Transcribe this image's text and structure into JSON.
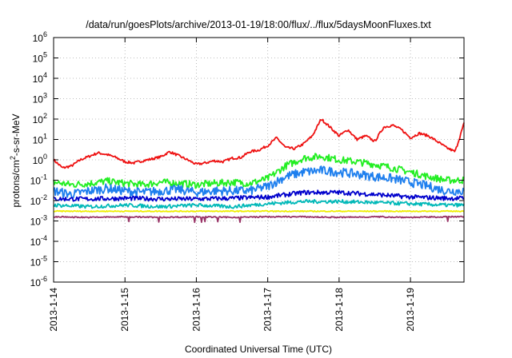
{
  "chart_data": {
    "type": "line",
    "title": "/data/run/goesPlots/archive/2013-01-19/18:00/flux/../flux/5daysMoonFluxes.txt",
    "xlabel": "Coordinated Universal Time (UTC)",
    "ylabel": "protons/cm²-s-sr-MeV",
    "ylabel_parts": {
      "pre": "protons/cm",
      "sup": "2",
      "post": "-s-sr-MeV"
    },
    "y_scale": "log",
    "ylim": [
      1e-06,
      1000000.0
    ],
    "y_ticks": [
      {
        "base": "10",
        "exp": "-6",
        "value": 1e-06
      },
      {
        "base": "10",
        "exp": "-5",
        "value": 1e-05
      },
      {
        "base": "10",
        "exp": "-4",
        "value": 0.0001
      },
      {
        "base": "10",
        "exp": "-3",
        "value": 0.001
      },
      {
        "base": "10",
        "exp": "-2",
        "value": 0.01
      },
      {
        "base": "10",
        "exp": "-1",
        "value": 0.1
      },
      {
        "base": "10",
        "exp": "0",
        "value": 1
      },
      {
        "base": "10",
        "exp": "1",
        "value": 10
      },
      {
        "base": "10",
        "exp": "2",
        "value": 100
      },
      {
        "base": "10",
        "exp": "3",
        "value": 1000
      },
      {
        "base": "10",
        "exp": "4",
        "value": 10000
      },
      {
        "base": "10",
        "exp": "5",
        "value": 100000
      },
      {
        "base": "10",
        "exp": "6",
        "value": 1000000
      }
    ],
    "xlim": [
      "2013-01-14T00:00",
      "2013-01-19T18:00"
    ],
    "x_ticks": [
      "2013-1-14",
      "2013-1-15",
      "2013-1-16",
      "2013-1-17",
      "2013-1-18",
      "2013-1-19"
    ],
    "grid": true,
    "legend": "none",
    "series": [
      {
        "color": "#ee1111",
        "x": [
          "2013-01-14T00:00",
          "2013-01-14T03:00",
          "2013-01-14T06:00",
          "2013-01-14T09:00",
          "2013-01-14T12:00",
          "2013-01-14T15:00",
          "2013-01-14T18:00",
          "2013-01-14T21:00",
          "2013-01-15T00:00",
          "2013-01-15T03:00",
          "2013-01-15T06:00",
          "2013-01-15T09:00",
          "2013-01-15T12:00",
          "2013-01-15T15:00",
          "2013-01-15T18:00",
          "2013-01-15T21:00",
          "2013-01-16T00:00",
          "2013-01-16T03:00",
          "2013-01-16T06:00",
          "2013-01-16T09:00",
          "2013-01-16T12:00",
          "2013-01-16T15:00",
          "2013-01-16T18:00",
          "2013-01-16T21:00",
          "2013-01-17T00:00",
          "2013-01-17T03:00",
          "2013-01-17T06:00",
          "2013-01-17T09:00",
          "2013-01-17T12:00",
          "2013-01-17T15:00",
          "2013-01-17T18:00",
          "2013-01-17T21:00",
          "2013-01-18T00:00",
          "2013-01-18T03:00",
          "2013-01-18T06:00",
          "2013-01-18T09:00",
          "2013-01-18T12:00",
          "2013-01-18T15:00",
          "2013-01-18T18:00",
          "2013-01-18T21:00",
          "2013-01-19T00:00",
          "2013-01-19T03:00",
          "2013-01-19T06:00",
          "2013-01-19T09:00",
          "2013-01-19T12:00",
          "2013-01-19T15:00",
          "2013-01-19T18:00"
        ],
        "values": [
          1.0,
          0.4,
          0.5,
          1.0,
          1.5,
          2.2,
          1.8,
          1.3,
          0.8,
          0.7,
          0.9,
          1.1,
          1.4,
          2.5,
          1.6,
          1.0,
          0.6,
          0.7,
          0.9,
          0.8,
          1.2,
          1.3,
          2.5,
          3.0,
          5.0,
          12,
          4.0,
          3.5,
          6.0,
          15,
          100,
          40,
          15,
          30,
          10,
          15,
          8.0,
          40,
          50,
          30,
          12,
          20,
          15,
          8.0,
          4.0,
          2.5,
          60
        ]
      },
      {
        "color": "#22ee22",
        "x": [
          "2013-01-14T00:00",
          "2013-01-14T06:00",
          "2013-01-14T12:00",
          "2013-01-14T18:00",
          "2013-01-15T00:00",
          "2013-01-15T06:00",
          "2013-01-15T12:00",
          "2013-01-15T18:00",
          "2013-01-16T00:00",
          "2013-01-16T06:00",
          "2013-01-16T12:00",
          "2013-01-16T18:00",
          "2013-01-17T00:00",
          "2013-01-17T06:00",
          "2013-01-17T12:00",
          "2013-01-17T18:00",
          "2013-01-18T00:00",
          "2013-01-18T06:00",
          "2013-01-18T12:00",
          "2013-01-18T18:00",
          "2013-01-19T00:00",
          "2013-01-19T06:00",
          "2013-01-19T12:00",
          "2013-01-19T18:00"
        ],
        "values": [
          0.08,
          0.06,
          0.07,
          0.09,
          0.07,
          0.06,
          0.08,
          0.07,
          0.06,
          0.07,
          0.08,
          0.07,
          0.12,
          0.5,
          1.2,
          1.5,
          1.0,
          0.8,
          0.6,
          0.4,
          0.25,
          0.15,
          0.1,
          0.1
        ]
      },
      {
        "color": "#1e7fee",
        "x": [
          "2013-01-14T00:00",
          "2013-01-14T06:00",
          "2013-01-14T12:00",
          "2013-01-14T18:00",
          "2013-01-15T00:00",
          "2013-01-15T06:00",
          "2013-01-15T12:00",
          "2013-01-15T18:00",
          "2013-01-16T00:00",
          "2013-01-16T06:00",
          "2013-01-16T12:00",
          "2013-01-16T18:00",
          "2013-01-17T00:00",
          "2013-01-17T06:00",
          "2013-01-17T12:00",
          "2013-01-17T18:00",
          "2013-01-18T00:00",
          "2013-01-18T06:00",
          "2013-01-18T12:00",
          "2013-01-18T18:00",
          "2013-01-19T00:00",
          "2013-01-19T06:00",
          "2013-01-19T12:00",
          "2013-01-19T18:00"
        ],
        "values": [
          0.03,
          0.02,
          0.03,
          0.04,
          0.03,
          0.025,
          0.03,
          0.035,
          0.025,
          0.03,
          0.03,
          0.03,
          0.05,
          0.15,
          0.25,
          0.3,
          0.25,
          0.2,
          0.15,
          0.12,
          0.08,
          0.05,
          0.03,
          0.03
        ]
      },
      {
        "color": "#0000cc",
        "x": [
          "2013-01-14T00:00",
          "2013-01-14T12:00",
          "2013-01-15T00:00",
          "2013-01-15T12:00",
          "2013-01-16T00:00",
          "2013-01-16T12:00",
          "2013-01-17T00:00",
          "2013-01-17T12:00",
          "2013-01-18T00:00",
          "2013-01-18T12:00",
          "2013-01-19T00:00",
          "2013-01-19T12:00",
          "2013-01-19T18:00"
        ],
        "values": [
          0.012,
          0.012,
          0.013,
          0.012,
          0.012,
          0.013,
          0.015,
          0.025,
          0.025,
          0.02,
          0.015,
          0.013,
          0.013
        ]
      },
      {
        "color": "#00b8b8",
        "x": [
          "2013-01-14T00:00",
          "2013-01-14T12:00",
          "2013-01-15T00:00",
          "2013-01-15T12:00",
          "2013-01-16T00:00",
          "2013-01-16T12:00",
          "2013-01-17T00:00",
          "2013-01-17T12:00",
          "2013-01-18T00:00",
          "2013-01-18T12:00",
          "2013-01-19T00:00",
          "2013-01-19T12:00",
          "2013-01-19T18:00"
        ],
        "values": [
          0.006,
          0.005,
          0.006,
          0.005,
          0.006,
          0.005,
          0.007,
          0.009,
          0.009,
          0.008,
          0.007,
          0.006,
          0.006
        ]
      },
      {
        "color": "#eeee00",
        "x": [
          "2013-01-14T00:00",
          "2013-01-19T18:00"
        ],
        "values": [
          0.003,
          0.003
        ]
      },
      {
        "color": "#993366",
        "x": [
          "2013-01-14T00:00",
          "2013-01-14T12:00",
          "2013-01-15T00:00",
          "2013-01-15T12:00",
          "2013-01-16T00:00",
          "2013-01-16T12:00",
          "2013-01-17T00:00",
          "2013-01-17T12:00",
          "2013-01-18T00:00",
          "2013-01-18T12:00",
          "2013-01-19T00:00",
          "2013-01-19T12:00",
          "2013-01-19T18:00"
        ],
        "values": [
          0.0016,
          0.0015,
          0.0016,
          0.0015,
          0.0016,
          0.0015,
          0.0016,
          0.0016,
          0.0015,
          0.0016,
          0.0015,
          0.0016,
          0.0016
        ]
      }
    ]
  }
}
